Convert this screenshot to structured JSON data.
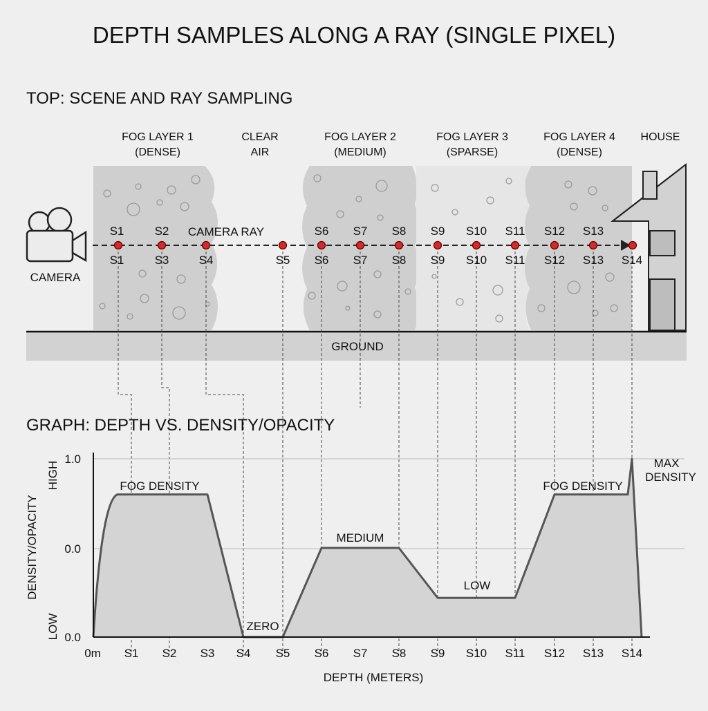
{
  "title": "DEPTH SAMPLES ALONG A RAY (SINGLE PIXEL)",
  "top": {
    "heading": "TOP: SCENE AND RAY SAMPLING",
    "regions": [
      {
        "line1": "FOG LAYER 1",
        "line2": "(DENSE)"
      },
      {
        "line1": "CLEAR",
        "line2": "AIR"
      },
      {
        "line1": "FOG LAYER 2",
        "line2": "(MEDIUM)"
      },
      {
        "line1": "FOG LAYER 3",
        "line2": "(SPARSE)"
      },
      {
        "line1": "FOG LAYER 4",
        "line2": "(DENSE)"
      },
      {
        "line1": "HOUSE",
        "line2": ""
      }
    ],
    "camera_label": "CAMERA",
    "ray_label": "CAMERA RAY",
    "ground_label": "GROUND",
    "upper_sample_labels": [
      "S1",
      "S2",
      "S6",
      "S7",
      "S8",
      "S9",
      "S10",
      "S11",
      "S12",
      "S13"
    ],
    "lower_sample_labels": [
      "S1",
      "S3",
      "S4",
      "S5",
      "S6",
      "S7",
      "S8",
      "S9",
      "S10",
      "S11",
      "S12",
      "S13",
      "S14"
    ]
  },
  "graph": {
    "heading": "GRAPH: DEPTH VS. DENSITY/OPACITY",
    "ylabel": "DENSITY/OPACITY",
    "y_high": "HIGH",
    "y_low": "LOW",
    "y_ticks": [
      "1.0",
      "0.0",
      "0.0"
    ],
    "xlabel": "DEPTH (METERS)",
    "x_ticks": [
      "0m",
      "S1",
      "S2",
      "S3",
      "S4",
      "S5",
      "S6",
      "S7",
      "S8",
      "S9",
      "S10",
      "S11",
      "S12",
      "S13",
      "S14"
    ],
    "annotations": {
      "fog1": "FOG DENSITY",
      "zero": "ZERO",
      "medium": "MEDIUM",
      "low": "LOW",
      "fog4": "FOG DENSITY",
      "max1": "MAX",
      "max2": "DENSITY"
    }
  },
  "chart_data": {
    "type": "area",
    "x": [
      "0m",
      "S1",
      "S2",
      "S3",
      "S4",
      "S5",
      "S6",
      "S7",
      "S8",
      "S9",
      "S10",
      "S11",
      "S12",
      "S13",
      "S14"
    ],
    "series": [
      {
        "values": [
          0,
          0.8,
          0.8,
          0.8,
          0,
          0,
          0.5,
          0.5,
          0.5,
          0.22,
          0.22,
          0.22,
          0.8,
          0.8,
          1.0
        ]
      }
    ],
    "ylim": [
      0,
      1.0
    ],
    "grid": true
  },
  "colors": {
    "fog": "#cfcfcf",
    "fog_sparse": "#e6e6e6",
    "ray_dot": "#d42a2a",
    "curve": "#555555",
    "curve_fill": "#d4d4d4"
  }
}
